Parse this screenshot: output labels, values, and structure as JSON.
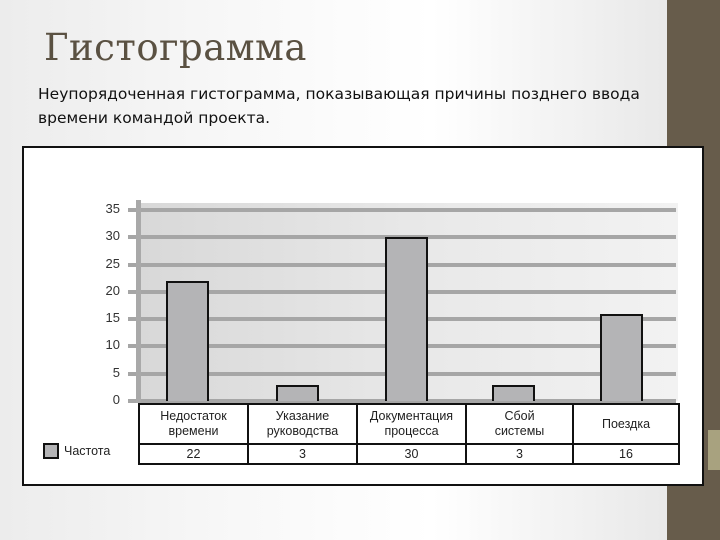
{
  "slide": {
    "title": "Гистограмма",
    "subtitle": "Неупорядоченная гистограмма, показывающая причины позднего ввода времени командой проекта."
  },
  "colors": {
    "side_bar": "#675c4b",
    "side_accent": "#a8a27f",
    "bar_fill": "#b4b4b6",
    "gridline": "#a6a6a6",
    "title": "#5a5142"
  },
  "legend": {
    "label": "Частота"
  },
  "chart_data": {
    "type": "bar",
    "title": "",
    "xlabel": "",
    "ylabel": "",
    "categories": [
      "Недостаток времени",
      "Указание руководства",
      "Документация процесса",
      "Сбой системы",
      "Поездка"
    ],
    "series": [
      {
        "name": "Частота",
        "values": [
          22,
          3,
          30,
          3,
          16
        ]
      }
    ],
    "ylim": [
      0,
      35
    ],
    "yticks": [
      0,
      5,
      10,
      15,
      20,
      25,
      30,
      35
    ],
    "grid": true,
    "legend_position": "left of data table",
    "data_table": true
  },
  "table": {
    "categories": [
      {
        "line1": "Недостаток",
        "line2": "времени"
      },
      {
        "line1": "Указание",
        "line2": "руководства"
      },
      {
        "line1": "Документация",
        "line2": "процесса"
      },
      {
        "line1": "Сбой",
        "line2": "системы"
      },
      {
        "line1": "Поездка",
        "line2": ""
      }
    ],
    "values": [
      "22",
      "3",
      "30",
      "3",
      "16"
    ]
  },
  "y_ticks": [
    "35",
    "30",
    "25",
    "20",
    "15",
    "10",
    "5",
    "0"
  ]
}
